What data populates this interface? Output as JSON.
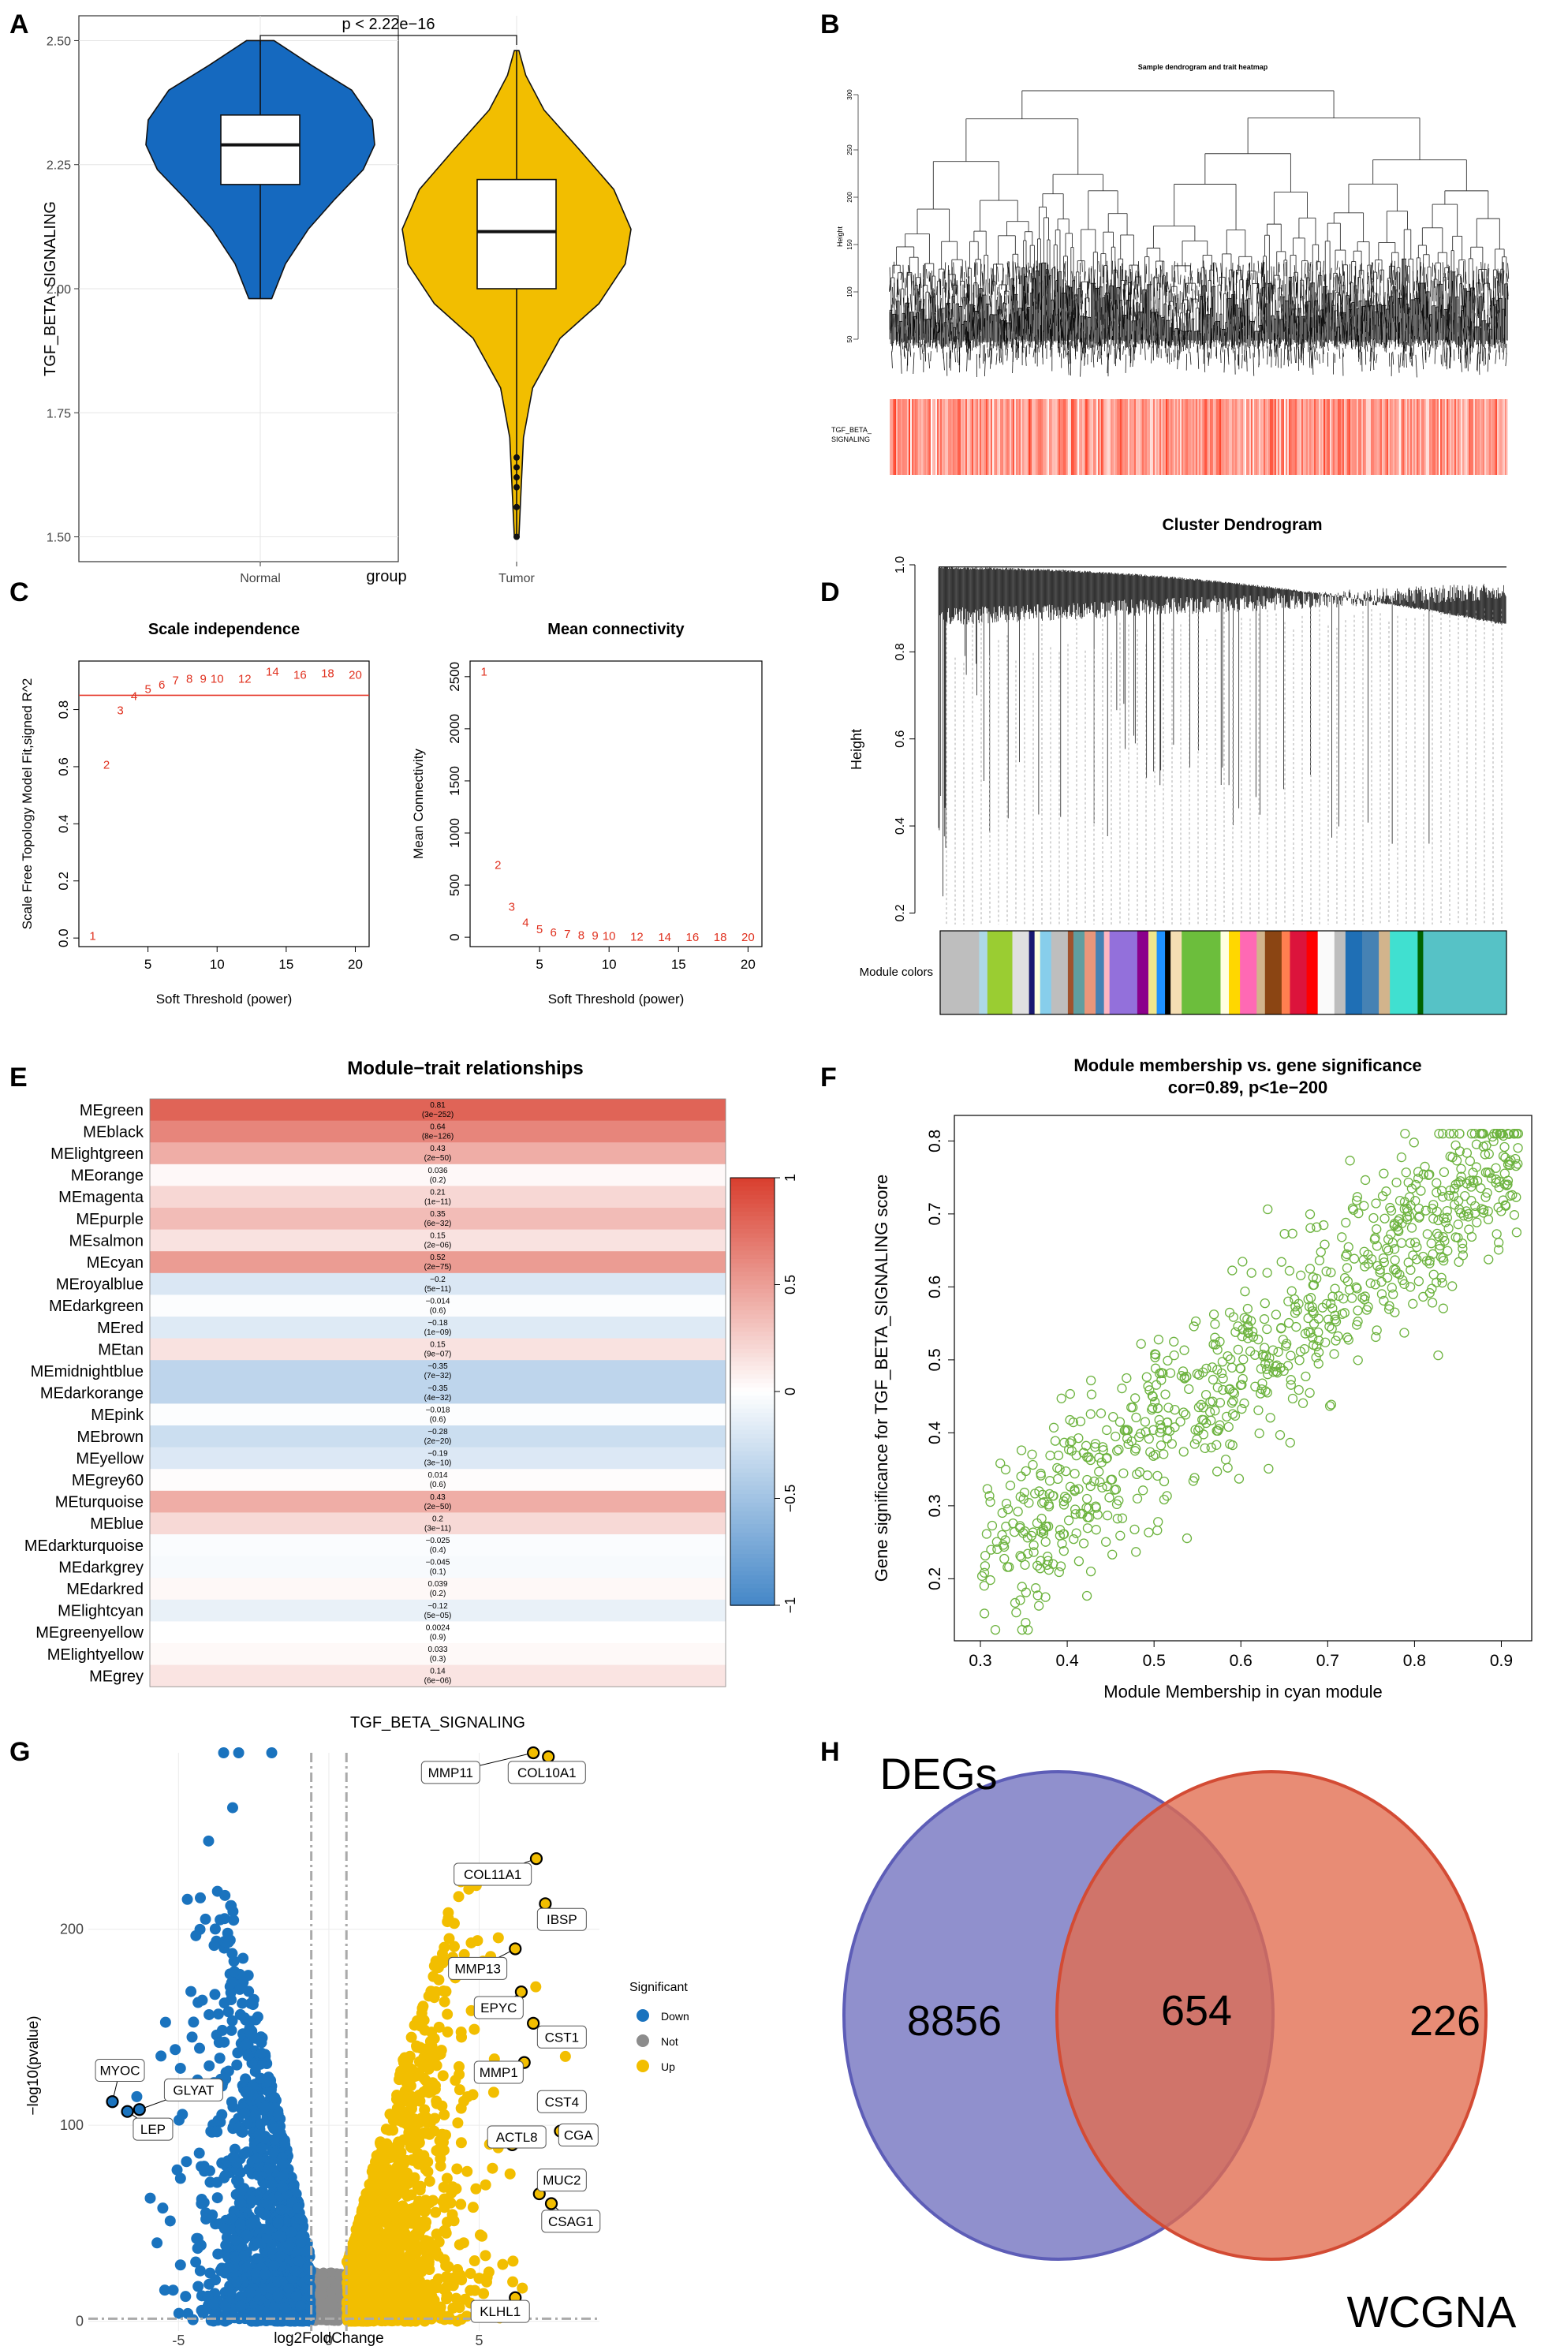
{
  "figure": {
    "panel_letters": [
      "A",
      "B",
      "C",
      "D",
      "E",
      "F",
      "G",
      "H"
    ]
  },
  "chart_data": [
    {
      "panel": "A",
      "type": "violin",
      "categories": [
        "Normal",
        "Tumor"
      ],
      "ylabel": "TGF_BETA_SIGNALING",
      "xlabel": "group",
      "ylim": [
        1.45,
        2.55
      ],
      "yticks": [
        "1.50",
        "1.75",
        "2.00",
        "2.25",
        "2.50"
      ],
      "pvalue": "p < 2.22e−16",
      "groups": [
        {
          "name": "Normal",
          "color": "#1569BF",
          "min": 1.98,
          "q1": 2.21,
          "median": 2.29,
          "q3": 2.35,
          "max": 2.5,
          "density": [
            [
              1.98,
              0.1
            ],
            [
              2.05,
              0.22
            ],
            [
              2.12,
              0.42
            ],
            [
              2.18,
              0.65
            ],
            [
              2.24,
              0.9
            ],
            [
              2.29,
              1.0
            ],
            [
              2.34,
              0.98
            ],
            [
              2.4,
              0.8
            ],
            [
              2.45,
              0.45
            ],
            [
              2.5,
              0.12
            ]
          ]
        },
        {
          "name": "Tumor",
          "color": "#F2BE00",
          "min": 1.5,
          "q1": 2.0,
          "median": 2.115,
          "q3": 2.22,
          "max": 2.48,
          "density": [
            [
              1.5,
              0.02
            ],
            [
              1.6,
              0.04
            ],
            [
              1.7,
              0.06
            ],
            [
              1.8,
              0.14
            ],
            [
              1.9,
              0.38
            ],
            [
              1.97,
              0.72
            ],
            [
              2.05,
              0.95
            ],
            [
              2.12,
              1.0
            ],
            [
              2.2,
              0.85
            ],
            [
              2.28,
              0.55
            ],
            [
              2.36,
              0.24
            ],
            [
              2.43,
              0.08
            ],
            [
              2.48,
              0.02
            ]
          ],
          "outliers": [
            1.5,
            1.56,
            1.6,
            1.62,
            1.64,
            1.66
          ]
        }
      ]
    },
    {
      "panel": "B",
      "type": "dendrogram_heatmap",
      "title": "Sample dendrogram and trait heatmap",
      "ylabel": "Height",
      "yticks": [
        "50",
        "100",
        "150",
        "200",
        "250",
        "300"
      ],
      "trait_label_lines": [
        "TGF_BETA_",
        "SIGNALING"
      ],
      "heat_colors": [
        "#FFFFFF",
        "#E8442B"
      ]
    },
    {
      "panel": "C1",
      "type": "scatter_text",
      "title": "Scale independence",
      "xlabel": "Soft Threshold (power)",
      "ylabel": "Scale Free Topology Model Fit,signed R^2",
      "xlim": [
        0,
        21
      ],
      "ylim": [
        -0.03,
        0.97
      ],
      "xticks": [
        5,
        10,
        15,
        20
      ],
      "yticks": [
        0.0,
        0.2,
        0.4,
        0.6,
        0.8
      ],
      "hline": 0.85,
      "powers": [
        1,
        2,
        3,
        4,
        5,
        6,
        7,
        8,
        9,
        10,
        12,
        14,
        16,
        18,
        20
      ],
      "values": [
        0.01,
        0.61,
        0.8,
        0.85,
        0.875,
        0.89,
        0.905,
        0.91,
        0.91,
        0.91,
        0.91,
        0.935,
        0.925,
        0.93,
        0.925
      ]
    },
    {
      "panel": "C2",
      "type": "scatter_text",
      "title": "Mean connectivity",
      "xlabel": "Soft Threshold (power)",
      "ylabel": "Mean Connectivity",
      "xlim": [
        0,
        21
      ],
      "ylim": [
        -90,
        2650
      ],
      "xticks": [
        5,
        10,
        15,
        20
      ],
      "yticks": [
        0,
        500,
        1000,
        1500,
        2000,
        2500
      ],
      "powers": [
        1,
        2,
        3,
        4,
        5,
        6,
        7,
        8,
        9,
        10,
        12,
        14,
        16,
        18,
        20
      ],
      "values": [
        2555,
        700,
        300,
        150,
        85,
        55,
        38,
        28,
        22,
        18,
        13,
        10,
        9,
        8,
        7
      ]
    },
    {
      "panel": "D",
      "type": "dendrogram",
      "title": "Cluster Dendrogram",
      "ylabel": "Height",
      "ylim": [
        0.15,
        1.0
      ],
      "yticks": [
        "0.2",
        "0.4",
        "0.6",
        "0.8",
        "1.0"
      ],
      "module_label": "Module colors",
      "modules": [
        {
          "c": "#BEBEBE",
          "w": 14
        },
        {
          "c": "#ADD8E6",
          "w": 3
        },
        {
          "c": "#9ACD32",
          "w": 9
        },
        {
          "c": "#E0E0E0",
          "w": 6
        },
        {
          "c": "#191970",
          "w": 2
        },
        {
          "c": "#FFFFE0",
          "w": 2
        },
        {
          "c": "#87CEEB",
          "w": 4
        },
        {
          "c": "#BEBEBE",
          "w": 6
        },
        {
          "c": "#A0522D",
          "w": 2
        },
        {
          "c": "#5F9EA0",
          "w": 4
        },
        {
          "c": "#E9967A",
          "w": 4
        },
        {
          "c": "#4682B4",
          "w": 3
        },
        {
          "c": "#FFB6C1",
          "w": 2
        },
        {
          "c": "#9370DB",
          "w": 10
        },
        {
          "c": "#8B008B",
          "w": 4
        },
        {
          "c": "#F0E68C",
          "w": 3
        },
        {
          "c": "#1E90FF",
          "w": 3
        },
        {
          "c": "#000000",
          "w": 2
        },
        {
          "c": "#F5DEB3",
          "w": 4
        },
        {
          "c": "#6CBE3C",
          "w": 14
        },
        {
          "c": "#FFFFE0",
          "w": 3
        },
        {
          "c": "#FFD700",
          "w": 4
        },
        {
          "c": "#FF69B4",
          "w": 6
        },
        {
          "c": "#D2B48C",
          "w": 3
        },
        {
          "c": "#8B4513",
          "w": 6
        },
        {
          "c": "#FF7F50",
          "w": 3
        },
        {
          "c": "#DC143C",
          "w": 6
        },
        {
          "c": "#FF0000",
          "w": 4
        },
        {
          "c": "#FAFAFA",
          "w": 6
        },
        {
          "c": "#BEBEBE",
          "w": 4
        },
        {
          "c": "#1F6FB5",
          "w": 6
        },
        {
          "c": "#4682B4",
          "w": 6
        },
        {
          "c": "#D2B48C",
          "w": 4
        },
        {
          "c": "#40E0D0",
          "w": 10
        },
        {
          "c": "#006400",
          "w": 2
        },
        {
          "c": "#56C2C6",
          "w": 30
        }
      ]
    },
    {
      "panel": "E",
      "type": "heatmap",
      "title": "Module−trait relationships",
      "xlabel": "TGF_BETA_SIGNALING",
      "colorbar_ticks": [
        "1",
        "0.5",
        "0",
        "−0.5",
        "−1"
      ],
      "rows": [
        {
          "module": "MEgreen",
          "cor": "0.81",
          "p": "(3e−252)",
          "v": 0.81
        },
        {
          "module": "MEblack",
          "cor": "0.64",
          "p": "(8e−126)",
          "v": 0.64
        },
        {
          "module": "MElightgreen",
          "cor": "0.43",
          "p": "(2e−50)",
          "v": 0.43
        },
        {
          "module": "MEorange",
          "cor": "0.036",
          "p": "(0.2)",
          "v": 0.036
        },
        {
          "module": "MEmagenta",
          "cor": "0.21",
          "p": "(1e−11)",
          "v": 0.21
        },
        {
          "module": "MEpurple",
          "cor": "0.35",
          "p": "(6e−32)",
          "v": 0.35
        },
        {
          "module": "MEsalmon",
          "cor": "0.15",
          "p": "(2e−06)",
          "v": 0.15
        },
        {
          "module": "MEcyan",
          "cor": "0.52",
          "p": "(2e−75)",
          "v": 0.52
        },
        {
          "module": "MEroyalblue",
          "cor": "−0.2",
          "p": "(5e−11)",
          "v": -0.2
        },
        {
          "module": "MEdarkgreen",
          "cor": "−0.014",
          "p": "(0.6)",
          "v": -0.014
        },
        {
          "module": "MEred",
          "cor": "−0.18",
          "p": "(1e−09)",
          "v": -0.18
        },
        {
          "module": "MEtan",
          "cor": "0.15",
          "p": "(9e−07)",
          "v": 0.15
        },
        {
          "module": "MEmidnightblue",
          "cor": "−0.35",
          "p": "(7e−32)",
          "v": -0.35
        },
        {
          "module": "MEdarkorange",
          "cor": "−0.35",
          "p": "(4e−32)",
          "v": -0.35
        },
        {
          "module": "MEpink",
          "cor": "−0.018",
          "p": "(0.6)",
          "v": -0.018
        },
        {
          "module": "MEbrown",
          "cor": "−0.28",
          "p": "(2e−20)",
          "v": -0.28
        },
        {
          "module": "MEyellow",
          "cor": "−0.19",
          "p": "(3e−10)",
          "v": -0.19
        },
        {
          "module": "MEgrey60",
          "cor": "0.014",
          "p": "(0.6)",
          "v": 0.014
        },
        {
          "module": "MEturquoise",
          "cor": "0.43",
          "p": "(2e−50)",
          "v": 0.43
        },
        {
          "module": "MEblue",
          "cor": "0.2",
          "p": "(3e−11)",
          "v": 0.2
        },
        {
          "module": "MEdarkturquoise",
          "cor": "−0.025",
          "p": "(0.4)",
          "v": -0.025
        },
        {
          "module": "MEdarkgrey",
          "cor": "−0.045",
          "p": "(0.1)",
          "v": -0.045
        },
        {
          "module": "MEdarkred",
          "cor": "0.039",
          "p": "(0.2)",
          "v": 0.039
        },
        {
          "module": "MElightcyan",
          "cor": "−0.12",
          "p": "(5e−05)",
          "v": -0.12
        },
        {
          "module": "MEgreenyellow",
          "cor": "0.0024",
          "p": "(0.9)",
          "v": 0.0024
        },
        {
          "module": "MElightyellow",
          "cor": "0.033",
          "p": "(0.3)",
          "v": 0.033
        },
        {
          "module": "MEgrey",
          "cor": "0.14",
          "p": "(6e−06)",
          "v": 0.14
        }
      ]
    },
    {
      "panel": "F",
      "type": "scatter",
      "title_lines": [
        "Module membership vs. gene significance",
        "cor=0.89, p<1e−200"
      ],
      "xlabel": "Module Membership in cyan module",
      "ylabel": "Gene significance for TGF_BETA_SIGNALING score",
      "xlim": [
        0.27,
        0.935
      ],
      "ylim": [
        0.115,
        0.835
      ],
      "xticks": [
        0.3,
        0.4,
        0.5,
        0.6,
        0.7,
        0.8,
        0.9
      ],
      "yticks": [
        0.2,
        0.3,
        0.4,
        0.5,
        0.6,
        0.7,
        0.8
      ],
      "color": "#6DB33F",
      "trend": {
        "slope": 0.92,
        "intercept": -0.06,
        "n_points": 820
      }
    },
    {
      "panel": "G",
      "type": "volcano",
      "xlabel": "log2FoldChange",
      "ylabel": "−log10(pvalue)",
      "xlim": [
        -8,
        9
      ],
      "ylim": [
        -5,
        290
      ],
      "xticks": [
        -5,
        0,
        5
      ],
      "yticks": [
        0,
        100,
        200
      ],
      "legend_title": "Significant",
      "legend": [
        {
          "name": "Down",
          "color": "#1A73BE"
        },
        {
          "name": "Not",
          "color": "#8C8C8C"
        },
        {
          "name": "Up",
          "color": "#F2BE00"
        }
      ],
      "labels": [
        {
          "text": "MMP11",
          "px": [
            6.8,
            290
          ],
          "box": [
            4.05,
            280
          ]
        },
        {
          "text": "COL10A1",
          "px": [
            7.3,
            288
          ],
          "box": [
            7.25,
            280
          ]
        },
        {
          "text": "COL11A1",
          "px": [
            6.9,
            236
          ],
          "box": [
            5.45,
            228
          ]
        },
        {
          "text": "IBSP",
          "px": [
            7.2,
            213
          ],
          "box": [
            7.75,
            205
          ]
        },
        {
          "text": "MMP13",
          "px": [
            6.2,
            190
          ],
          "box": [
            4.95,
            180
          ]
        },
        {
          "text": "EPYC",
          "px": [
            6.4,
            168
          ],
          "box": [
            5.65,
            160
          ]
        },
        {
          "text": "CST1",
          "px": [
            6.8,
            152
          ],
          "box": [
            7.75,
            145
          ]
        },
        {
          "text": "MMP1",
          "px": [
            6.5,
            132
          ],
          "box": [
            5.65,
            127
          ]
        },
        {
          "text": "CST4",
          "px": [
            7.6,
            114
          ],
          "box": [
            7.75,
            112
          ]
        },
        {
          "text": "ACTL8",
          "px": [
            6.1,
            90
          ],
          "box": [
            6.25,
            94
          ]
        },
        {
          "text": "CGA",
          "px": [
            7.7,
            97
          ],
          "box": [
            8.3,
            95
          ]
        },
        {
          "text": "MUC2",
          "px": [
            7.0,
            65
          ],
          "box": [
            7.75,
            72
          ]
        },
        {
          "text": "CSAG1",
          "px": [
            7.4,
            60
          ],
          "box": [
            8.05,
            51
          ]
        },
        {
          "text": "KLHL1",
          "px": [
            6.2,
            12
          ],
          "box": [
            5.7,
            5
          ]
        },
        {
          "text": "MYOC",
          "px": [
            -7.2,
            112
          ],
          "box": [
            -6.95,
            128
          ]
        },
        {
          "text": "GLYAT",
          "px": [
            -6.3,
            108
          ],
          "box": [
            -4.5,
            118
          ]
        },
        {
          "text": "LEP",
          "px": [
            -6.7,
            107
          ],
          "box": [
            -5.85,
            98
          ]
        }
      ]
    },
    {
      "panel": "H",
      "type": "venn",
      "sets": [
        {
          "name": "DEGs",
          "color": "#7B7BC2"
        },
        {
          "name": "WCGNA",
          "color": "#E47B5B"
        }
      ],
      "only_a": "8856",
      "overlap": "654",
      "only_b": "226"
    }
  ]
}
